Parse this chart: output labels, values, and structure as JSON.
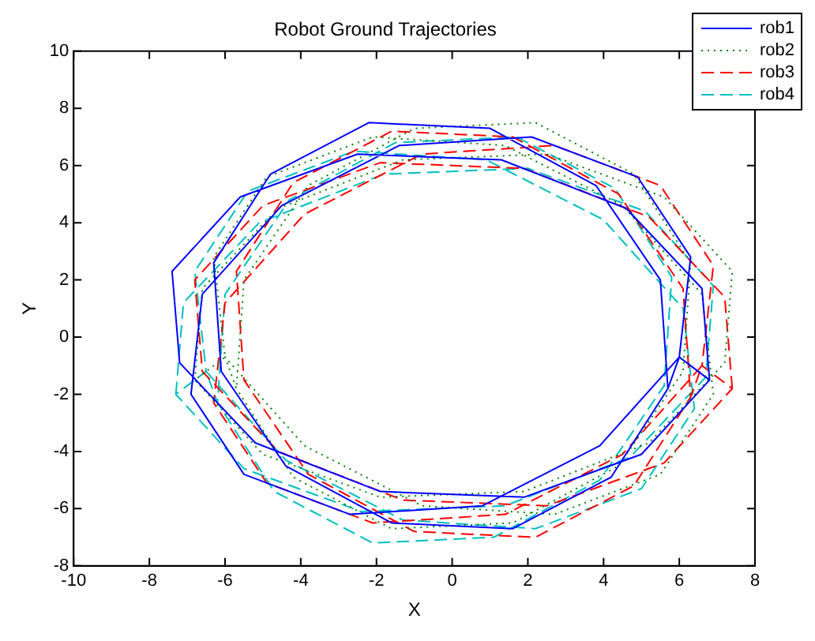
{
  "chart_data": {
    "type": "line",
    "title": "Robot Ground Trajectories",
    "xlabel": "X",
    "ylabel": "Y",
    "xlim": [
      -10,
      8
    ],
    "xticks": [
      -10,
      -8,
      -6,
      -4,
      -2,
      0,
      2,
      4,
      6,
      8
    ],
    "ylim": [
      -8,
      10
    ],
    "yticks": [
      -8,
      -6,
      -4,
      -2,
      0,
      2,
      4,
      6,
      8,
      10
    ],
    "grid": false,
    "legend": "top right",
    "marker": "none",
    "series": [
      {
        "name": "rob1",
        "color": "#0000ff",
        "line_style": "solid",
        "x": [
          6.8,
          6.6,
          4.6,
          1.3,
          -2.5,
          -5.6,
          -7.4,
          -7.2,
          -5.2,
          -1.9,
          1.9,
          5.0,
          6.8,
          6.0,
          6.3,
          4.9,
          2.1,
          -1.4,
          -4.5,
          -6.6,
          -6.9,
          -5.5,
          -2.7,
          0.8,
          3.9,
          6.0,
          5.7,
          5.5,
          3.8,
          1.0,
          -2.2,
          -4.8,
          -6.3,
          -6.1,
          -4.4,
          -1.6,
          1.6,
          4.2,
          5.7
        ],
        "values": [
          -1.5,
          1.7,
          4.5,
          6.2,
          6.4,
          4.9,
          2.3,
          -0.9,
          -3.7,
          -5.4,
          -5.6,
          -4.1,
          -1.5,
          -0.7,
          2.8,
          5.6,
          7.0,
          6.7,
          4.6,
          1.5,
          -2.0,
          -4.8,
          -6.2,
          -5.9,
          -3.8,
          -0.7,
          -1.8,
          2.0,
          5.3,
          7.3,
          7.5,
          5.7,
          2.6,
          -1.2,
          -4.5,
          -6.5,
          -6.7,
          -4.9,
          -1.8
        ]
      },
      {
        "name": "rob2",
        "color": "#008000",
        "line_style": "dotted",
        "x": [
          -6.8,
          -6.6,
          -4.6,
          -1.3,
          2.5,
          5.6,
          7.4,
          7.2,
          5.2,
          1.9,
          -1.9,
          -5.0,
          -6.8,
          -6.0,
          -6.3,
          -4.9,
          -2.1,
          1.4,
          4.5,
          6.6,
          6.9,
          5.5,
          2.7,
          -0.8,
          -3.9,
          -6.0,
          -5.7,
          -5.5,
          -3.8,
          -1.0,
          2.2,
          4.8,
          6.3,
          6.1,
          4.4,
          1.6,
          -1.6,
          -4.2,
          -5.7
        ],
        "values": [
          -1.5,
          1.7,
          4.5,
          6.2,
          6.4,
          4.9,
          2.3,
          -0.9,
          -3.7,
          -5.4,
          -5.6,
          -4.1,
          -1.5,
          -0.7,
          2.8,
          5.6,
          7.0,
          6.7,
          4.6,
          1.5,
          -2.0,
          -4.8,
          -6.2,
          -5.9,
          -3.8,
          -0.7,
          -1.8,
          2.0,
          5.3,
          7.3,
          7.5,
          5.7,
          2.6,
          -1.2,
          -4.5,
          -6.5,
          -6.7,
          -4.9,
          -1.8
        ]
      },
      {
        "name": "rob3",
        "color": "#ff0000",
        "line_style": "dashed",
        "x": [
          7.4,
          7.2,
          5.2,
          1.9,
          -1.9,
          -5.0,
          -6.8,
          -6.6,
          -4.6,
          -1.3,
          2.5,
          5.6,
          7.4,
          6.6,
          6.9,
          5.5,
          2.7,
          -0.8,
          -3.9,
          -6.0,
          -6.3,
          -4.9,
          -2.1,
          1.4,
          4.5,
          6.6,
          6.3,
          6.1,
          4.4,
          1.6,
          -1.6,
          -4.2,
          -5.7,
          -5.5,
          -3.8,
          -1.0,
          2.2,
          4.8,
          6.3
        ],
        "values": [
          -1.8,
          1.4,
          4.2,
          5.9,
          6.1,
          4.6,
          2.0,
          -1.2,
          -4.0,
          -5.7,
          -5.9,
          -4.4,
          -1.8,
          -1.0,
          2.5,
          5.3,
          6.7,
          6.4,
          4.3,
          1.2,
          -2.3,
          -5.1,
          -6.5,
          -6.2,
          -4.1,
          -1.0,
          -2.1,
          1.7,
          5.0,
          7.0,
          7.2,
          5.4,
          2.3,
          -1.5,
          -4.8,
          -6.8,
          -7.0,
          -5.2,
          -2.1
        ]
      },
      {
        "name": "rob4",
        "color": "#00bfbf",
        "line_style": "dashed",
        "x": [
          -7.3,
          -7.1,
          -5.1,
          -1.8,
          2.0,
          5.1,
          6.9,
          6.7,
          4.7,
          1.4,
          -2.4,
          -5.5,
          -7.3,
          -6.5,
          -6.8,
          -5.4,
          -2.6,
          0.9,
          4.0,
          6.1,
          6.4,
          5.0,
          2.2,
          -1.3,
          -4.4,
          -6.5,
          -6.2,
          -6.0,
          -4.3,
          -1.5,
          1.7,
          4.3,
          5.8,
          5.6,
          3.9,
          1.1,
          -2.1,
          -4.7,
          -6.2
        ],
        "values": [
          -2.0,
          1.2,
          4.0,
          5.7,
          5.9,
          4.4,
          1.8,
          -1.4,
          -4.2,
          -5.9,
          -6.1,
          -4.6,
          -2.0,
          -1.2,
          2.3,
          5.1,
          6.5,
          6.2,
          4.1,
          1.0,
          -2.5,
          -5.3,
          -6.7,
          -6.4,
          -4.3,
          -1.2,
          -2.3,
          1.5,
          4.8,
          6.8,
          7.0,
          5.2,
          2.1,
          -1.7,
          -5.0,
          -7.0,
          -7.2,
          -5.4,
          -2.3
        ]
      }
    ]
  }
}
